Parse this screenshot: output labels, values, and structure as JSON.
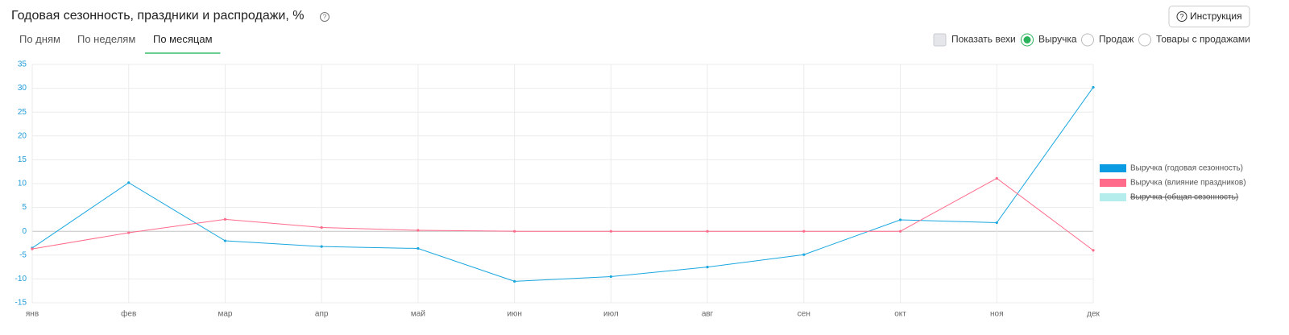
{
  "header": {
    "title": "Годовая сезонность, праздники и распродажи, %",
    "button": "Инструкция"
  },
  "tabs": {
    "items": [
      "По дням",
      "По неделям",
      "По месяцам"
    ],
    "active": 2
  },
  "controls": {
    "checkbox": "Показать вехи",
    "radios": [
      "Выручка",
      "Продаж",
      "Товары с продажами"
    ],
    "selected": 0
  },
  "chart_data": {
    "type": "line",
    "categories": [
      "янв",
      "фев",
      "мар",
      "апр",
      "май",
      "июн",
      "июл",
      "авг",
      "сен",
      "окт",
      "ноя",
      "дек"
    ],
    "series": [
      {
        "name": "Выручка (годовая сезонность)",
        "color": "#1aa7e0",
        "legend_color": "#0a9be3",
        "values": [
          -3.5,
          10.2,
          -2,
          -3.2,
          -3.6,
          -10.5,
          -9.5,
          -7.5,
          -4.9,
          2.4,
          1.8,
          30.2
        ]
      },
      {
        "name": "Выручка (влияние праздников)",
        "color": "#ff6b8a",
        "legend_color": "#ff6b8a",
        "values": [
          -3.7,
          -0.3,
          2.5,
          0.8,
          0.2,
          0,
          0,
          0,
          0,
          0,
          11.1,
          -4
        ]
      },
      {
        "name": "Выручка (общая сезонность)",
        "color": "#b5ecec",
        "legend_color": "#b5ecec",
        "hidden": true
      }
    ],
    "ylim": [
      -15,
      35
    ],
    "yticks": [
      -15,
      -10,
      -5,
      0,
      5,
      10,
      15,
      20,
      25,
      30,
      35
    ],
    "grid": true,
    "legend": "right"
  }
}
